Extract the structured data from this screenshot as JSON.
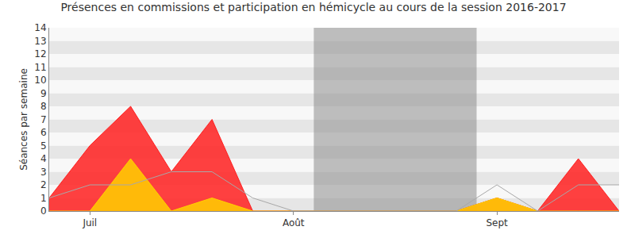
{
  "chart_data": {
    "type": "area",
    "title": "Présences en commissions et participation en hémicycle au cours de la session 2016-2017",
    "y_label": "Séances par semaine",
    "categories": [
      null,
      "Juil",
      null,
      null,
      null,
      null,
      "Août",
      null,
      null,
      null,
      null,
      "Sept",
      null,
      null,
      null
    ],
    "series": [
      {
        "type": "area",
        "color": "#ff2020",
        "values": [
          1,
          5,
          8,
          3,
          7,
          0,
          0,
          0,
          0,
          0,
          0,
          1,
          0,
          4,
          0
        ]
      },
      {
        "type": "area",
        "color": "#ffd000",
        "values": [
          0,
          0,
          4,
          0,
          1,
          0,
          0,
          0,
          0,
          0,
          0,
          1,
          0,
          0,
          0
        ]
      },
      {
        "type": "line",
        "color": "#a8a8a8",
        "values": [
          1,
          2,
          2,
          3,
          3,
          1,
          0,
          0,
          0,
          0,
          0,
          2,
          0,
          2,
          2
        ]
      }
    ],
    "shaded_range": [
      6.5,
      10.5
    ],
    "xlim": [
      0,
      14
    ],
    "ylim": [
      0,
      14
    ],
    "yticks": [
      0,
      1,
      2,
      3,
      4,
      5,
      6,
      7,
      8,
      9,
      10,
      11,
      12,
      13,
      14
    ],
    "grid": true
  }
}
